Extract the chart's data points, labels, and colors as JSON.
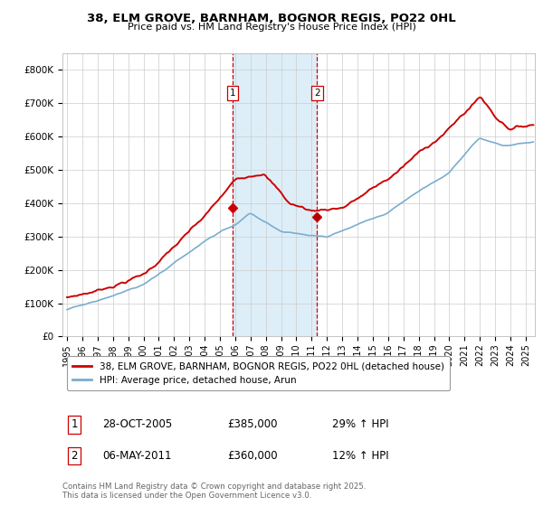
{
  "title": "38, ELM GROVE, BARNHAM, BOGNOR REGIS, PO22 0HL",
  "subtitle": "Price paid vs. HM Land Registry's House Price Index (HPI)",
  "ylabel_ticks": [
    "£0",
    "£100K",
    "£200K",
    "£300K",
    "£400K",
    "£500K",
    "£600K",
    "£700K",
    "£800K"
  ],
  "yvalues": [
    0,
    100000,
    200000,
    300000,
    400000,
    500000,
    600000,
    700000,
    800000
  ],
  "ylim": [
    0,
    850000
  ],
  "purchase1_date": 2005.82,
  "purchase1_price": 385000,
  "purchase2_date": 2011.35,
  "purchase2_price": 360000,
  "line1_color": "#cc0000",
  "line2_color": "#7aadcf",
  "shading_color": "#ddeef8",
  "vline_color": "#cc0000",
  "legend_line1": "38, ELM GROVE, BARNHAM, BOGNOR REGIS, PO22 0HL (detached house)",
  "legend_line2": "HPI: Average price, detached house, Arun",
  "table_row1": [
    "1",
    "28-OCT-2005",
    "£385,000",
    "29% ↑ HPI"
  ],
  "table_row2": [
    "2",
    "06-MAY-2011",
    "£360,000",
    "12% ↑ HPI"
  ],
  "footer": "Contains HM Land Registry data © Crown copyright and database right 2025.\nThis data is licensed under the Open Government Licence v3.0.",
  "background_color": "#ffffff",
  "grid_color": "#cccccc"
}
